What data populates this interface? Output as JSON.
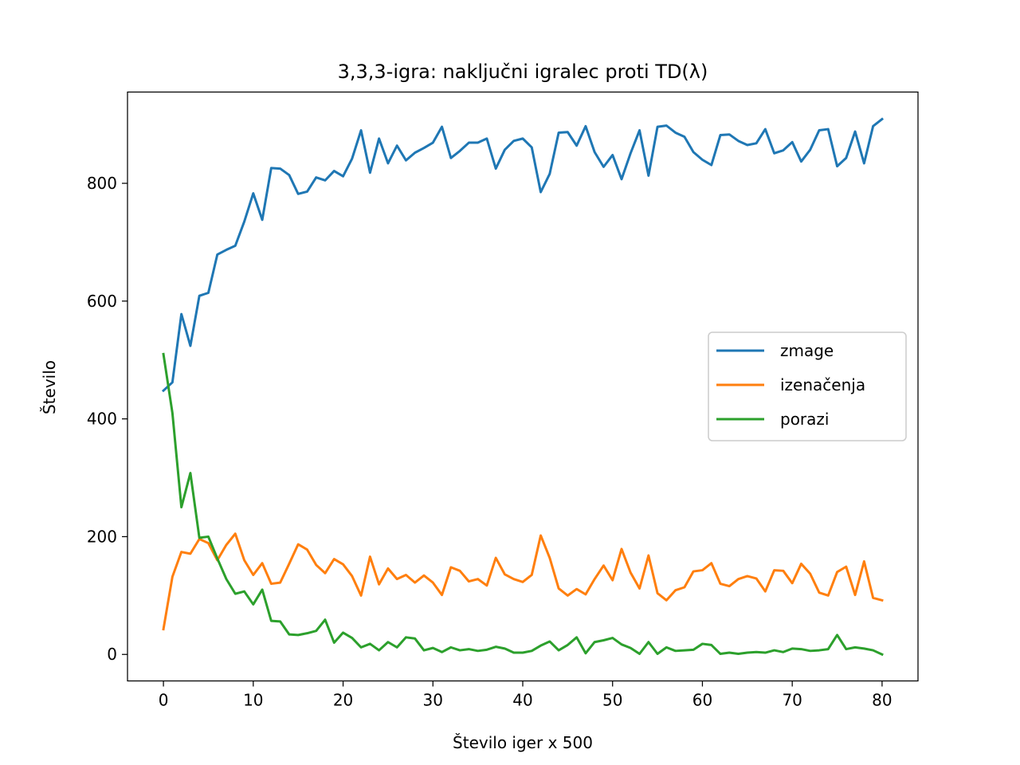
{
  "chart_data": {
    "type": "line",
    "title": "3,3,3-igra: naključni igralec proti TD(λ)",
    "xlabel": "Število iger x 500",
    "ylabel": "Število",
    "xlim": [
      -4,
      84
    ],
    "ylim": [
      -45,
      955
    ],
    "xticks": [
      0,
      10,
      20,
      30,
      40,
      50,
      60,
      70,
      80
    ],
    "yticks": [
      0,
      200,
      400,
      600,
      800
    ],
    "grid": false,
    "legend_position": "center-right",
    "x": [
      0,
      1,
      2,
      3,
      4,
      5,
      6,
      7,
      8,
      9,
      10,
      11,
      12,
      13,
      14,
      15,
      16,
      17,
      18,
      19,
      20,
      21,
      22,
      23,
      24,
      25,
      26,
      27,
      28,
      29,
      30,
      31,
      32,
      33,
      34,
      35,
      36,
      37,
      38,
      39,
      40,
      41,
      42,
      43,
      44,
      45,
      46,
      47,
      48,
      49,
      50,
      51,
      52,
      53,
      54,
      55,
      56,
      57,
      58,
      59,
      60,
      61,
      62,
      63,
      64,
      65,
      66,
      67,
      68,
      69,
      70,
      71,
      72,
      73,
      74,
      75,
      76,
      77,
      78,
      79,
      80
    ],
    "series": [
      {
        "name": "zmage",
        "color": "#1f77b4",
        "values": [
          448,
          462,
          578,
          524,
          609,
          614,
          679,
          687,
          694,
          735,
          783,
          738,
          826,
          825,
          814,
          782,
          786,
          810,
          805,
          821,
          812,
          842,
          890,
          818,
          876,
          834,
          864,
          839,
          852,
          860,
          869,
          896,
          843,
          855,
          869,
          869,
          876,
          825,
          857,
          872,
          876,
          861,
          785,
          816,
          886,
          887,
          864,
          897,
          853,
          828,
          848,
          807,
          851,
          890,
          813,
          896,
          898,
          886,
          879,
          853,
          840,
          831,
          882,
          883,
          872,
          865,
          868,
          892,
          851,
          856,
          870,
          837,
          857,
          890,
          892,
          829,
          843,
          888,
          834,
          897,
          909
        ]
      },
      {
        "name": "izenačenja",
        "color": "#ff7f0e",
        "values": [
          43,
          132,
          174,
          171,
          196,
          189,
          160,
          186,
          205,
          160,
          135,
          155,
          120,
          122,
          154,
          187,
          178,
          152,
          138,
          162,
          153,
          133,
          100,
          166,
          119,
          146,
          128,
          135,
          122,
          134,
          122,
          101,
          148,
          142,
          124,
          128,
          117,
          164,
          136,
          128,
          123,
          135,
          202,
          164,
          112,
          100,
          111,
          102,
          128,
          151,
          126,
          179,
          139,
          112,
          168,
          104,
          92,
          109,
          114,
          141,
          143,
          155,
          120,
          116,
          128,
          133,
          129,
          107,
          143,
          142,
          121,
          154,
          137,
          105,
          100,
          140,
          149,
          101,
          158,
          96,
          92
        ]
      },
      {
        "name": "porazi",
        "color": "#2ca02c",
        "values": [
          510,
          410,
          250,
          308,
          198,
          200,
          163,
          128,
          103,
          107,
          85,
          110,
          57,
          56,
          34,
          33,
          36,
          40,
          59,
          20,
          37,
          28,
          12,
          18,
          7,
          21,
          12,
          29,
          27,
          7,
          11,
          4,
          12,
          7,
          9,
          6,
          8,
          13,
          10,
          3,
          3,
          6,
          15,
          22,
          7,
          16,
          29,
          2,
          21,
          24,
          28,
          17,
          11,
          1,
          21,
          1,
          12,
          6,
          7,
          8,
          18,
          16,
          1,
          3,
          1,
          3,
          4,
          3,
          7,
          4,
          10,
          9,
          6,
          7,
          9,
          33,
          9,
          12,
          10,
          7,
          0
        ]
      }
    ]
  }
}
